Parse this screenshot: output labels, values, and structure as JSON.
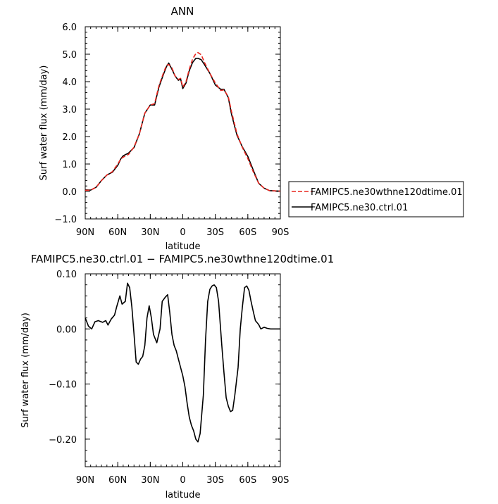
{
  "chart_data": [
    {
      "type": "line",
      "title": "ANN",
      "xlabel": "latitude",
      "ylabel": "Surf water flux (mm/day)",
      "xlim": [
        -90,
        90
      ],
      "ylim": [
        -1.0,
        6.0
      ],
      "xticks": [
        -90,
        -60,
        -30,
        0,
        30,
        60,
        90
      ],
      "xticklabels": [
        "90N",
        "60N",
        "30N",
        "0",
        "30S",
        "60S",
        "90S"
      ],
      "yticks": [
        -1.0,
        0.0,
        1.0,
        2.0,
        3.0,
        4.0,
        5.0,
        6.0
      ],
      "yticklabels": [
        "−1.0",
        "0.0",
        "1.0",
        "2.0",
        "3.0",
        "4.0",
        "5.0",
        "6.0"
      ],
      "legend_position": "right",
      "x": [
        -90,
        -85,
        -80,
        -75,
        -70,
        -65,
        -60,
        -57,
        -55,
        -50,
        -45,
        -40,
        -35,
        -30,
        -26,
        -22,
        -18,
        -15,
        -13,
        -10,
        -7,
        -4,
        -2,
        0,
        3,
        6,
        9,
        12,
        14,
        17,
        20,
        25,
        30,
        35,
        38,
        42,
        45,
        50,
        55,
        60,
        65,
        70,
        75,
        80,
        85,
        90
      ],
      "series": [
        {
          "name": "FAMIPC5.ne30wthne120dtime.01",
          "color": "#e8261f",
          "dash": "dashed",
          "values": [
            0.04,
            0.05,
            0.15,
            0.4,
            0.6,
            0.72,
            1.0,
            1.2,
            1.25,
            1.35,
            1.62,
            2.1,
            2.85,
            3.15,
            3.2,
            3.85,
            4.3,
            4.6,
            4.62,
            4.5,
            4.2,
            4.08,
            4.12,
            3.8,
            4.0,
            4.45,
            4.82,
            5.02,
            5.06,
            4.98,
            4.7,
            4.3,
            3.95,
            3.68,
            3.7,
            3.45,
            2.9,
            2.1,
            1.6,
            1.2,
            0.72,
            0.3,
            0.12,
            0.03,
            0.02,
            0.01
          ]
        },
        {
          "name": "FAMIPC5.ne30.ctrl.01",
          "color": "#000000",
          "dash": "solid",
          "values": [
            0.06,
            0.05,
            0.15,
            0.4,
            0.6,
            0.7,
            0.95,
            1.2,
            1.3,
            1.4,
            1.6,
            2.1,
            2.85,
            3.15,
            3.15,
            3.8,
            4.25,
            4.55,
            4.68,
            4.45,
            4.2,
            4.05,
            4.1,
            3.75,
            3.95,
            4.4,
            4.7,
            4.85,
            4.85,
            4.8,
            4.62,
            4.3,
            3.88,
            3.72,
            3.72,
            3.42,
            2.8,
            2.05,
            1.62,
            1.28,
            0.78,
            0.3,
            0.12,
            0.03,
            0.02,
            0.01
          ]
        }
      ]
    },
    {
      "type": "line",
      "title": "FAMIPC5.ne30.ctrl.01 − FAMIPC5.ne30wthne120dtime.01",
      "xlabel": "latitude",
      "ylabel": "Surf water flux (mm/day)",
      "xlim": [
        -90,
        90
      ],
      "ylim": [
        -0.25,
        0.1
      ],
      "xticks": [
        -90,
        -60,
        -30,
        0,
        30,
        60,
        90
      ],
      "xticklabels": [
        "90N",
        "60N",
        "30N",
        "0",
        "30S",
        "60S",
        "90S"
      ],
      "yticks": [
        -0.2,
        -0.1,
        0.0,
        0.1
      ],
      "yticklabels": [
        "−0.20",
        "−0.10",
        "0.00",
        "0.10"
      ],
      "x": [
        -90,
        -87,
        -84,
        -81,
        -78,
        -74,
        -71,
        -69,
        -66,
        -63,
        -61,
        -58,
        -56,
        -53,
        -51,
        -49,
        -47,
        -45,
        -43,
        -41,
        -39,
        -37,
        -35,
        -33,
        -31,
        -29,
        -27,
        -24,
        -21,
        -19,
        -16,
        -14,
        -12,
        -10,
        -8,
        -6,
        -4,
        -2,
        0,
        2,
        4,
        6,
        8,
        10,
        12,
        14,
        16,
        19,
        21,
        23,
        25,
        27,
        29,
        31,
        33,
        36,
        38,
        40,
        42,
        44,
        46,
        48,
        51,
        53,
        55,
        57,
        59,
        61,
        63,
        65,
        67,
        70,
        72,
        75,
        78,
        81,
        84,
        87,
        90
      ],
      "series": [
        {
          "name": "",
          "color": "#000000",
          "dash": "solid",
          "values": [
            0.02,
            0.005,
            0.0,
            0.013,
            0.015,
            0.012,
            0.015,
            0.007,
            0.018,
            0.025,
            0.04,
            0.06,
            0.045,
            0.05,
            0.083,
            0.075,
            0.04,
            -0.01,
            -0.06,
            -0.064,
            -0.055,
            -0.05,
            -0.03,
            0.02,
            0.042,
            0.02,
            -0.01,
            -0.025,
            0.0,
            0.05,
            0.058,
            0.062,
            0.03,
            -0.01,
            -0.03,
            -0.04,
            -0.055,
            -0.07,
            -0.085,
            -0.105,
            -0.135,
            -0.16,
            -0.175,
            -0.185,
            -0.2,
            -0.205,
            -0.19,
            -0.12,
            -0.02,
            0.05,
            0.072,
            0.078,
            0.08,
            0.075,
            0.05,
            -0.03,
            -0.08,
            -0.125,
            -0.14,
            -0.15,
            -0.148,
            -0.12,
            -0.07,
            0.0,
            0.04,
            0.075,
            0.078,
            0.07,
            0.05,
            0.032,
            0.015,
            0.008,
            0.0,
            0.003,
            0.001,
            0.0,
            0.0,
            0.0,
            0.0
          ]
        }
      ]
    }
  ]
}
